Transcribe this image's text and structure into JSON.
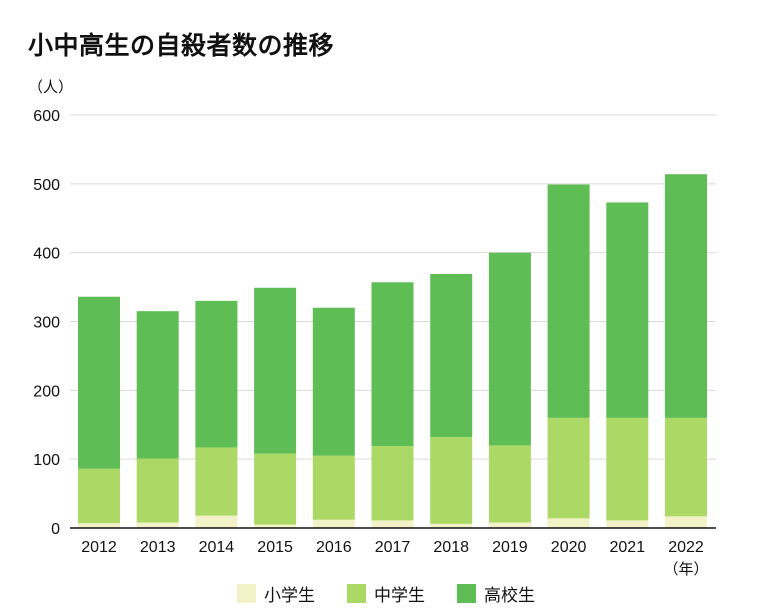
{
  "chart_data": {
    "type": "bar",
    "stacked": true,
    "title": "小中高生の自殺者数の推移",
    "y_unit": "（人）",
    "x_unit": "（年）",
    "ylim": [
      0,
      600
    ],
    "yticks": [
      0,
      100,
      200,
      300,
      400,
      500,
      600
    ],
    "grid": true,
    "legend_position": "bottom",
    "categories": [
      "2012",
      "2013",
      "2014",
      "2015",
      "2016",
      "2017",
      "2018",
      "2019",
      "2020",
      "2021",
      "2022"
    ],
    "series": [
      {
        "name": "小学生",
        "color": "#f3f1c7",
        "values": [
          7,
          8,
          18,
          5,
          12,
          11,
          6,
          8,
          14,
          11,
          17
        ]
      },
      {
        "name": "中学生",
        "color": "#acd965",
        "values": [
          79,
          93,
          99,
          103,
          93,
          108,
          126,
          112,
          146,
          149,
          143
        ]
      },
      {
        "name": "高校生",
        "color": "#5fbd55",
        "values": [
          250,
          214,
          213,
          241,
          215,
          238,
          237,
          280,
          339,
          313,
          354
        ]
      }
    ]
  }
}
